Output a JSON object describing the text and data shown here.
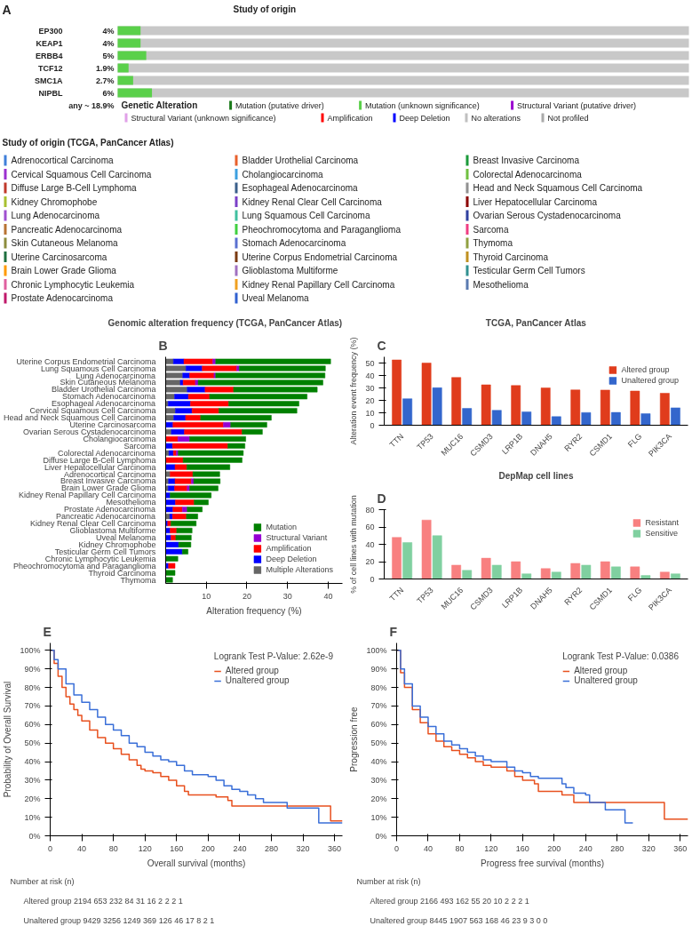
{
  "chart_data": [
    {
      "type": "other",
      "title": "Study of origin",
      "categories": [
        "EP300",
        "KEAP1",
        "ERBB4",
        "TCF12",
        "SMC1A",
        "NIPBL"
      ],
      "values": [
        4,
        4,
        5,
        1.9,
        2.7,
        6
      ],
      "value_labels": [
        "4%",
        "4%",
        "5%",
        "1.9%",
        "2.7%",
        "6%"
      ],
      "annotations": [
        "A",
        "any ~ 18.9%",
        "Mutation (putative driver)",
        "Mutation (unknown significance)",
        "Structural Variant (putative driver)",
        "Structural Variant (unknown significance)",
        "Amplification",
        "Deep Deletion",
        "No alterations",
        "Not profiled"
      ],
      "legend_title": "Genetic Alteration",
      "color": "#5ad04a"
    },
    {
      "type": "other",
      "title": "Study of origin (TCGA, PanCancer Atlas)",
      "categories": [
        "Adrenocortical Carcinoma",
        "Cervical Squamous Cell Carcinoma",
        "Diffuse Large B-Cell Lymphoma",
        "Kidney Chromophobe",
        "Lung Adenocarcinoma",
        "Pancreatic Adenocarcinoma",
        "Skin Cutaneous Melanoma",
        "Uterine Carcinosarcoma",
        "Brain Lower Grade Glioma",
        "Chronic Lymphocytic Leukemia",
        "Prostate Adenocarcinoma",
        "Bladder Urothelial Carcinoma",
        "Cholangiocarcinoma",
        "Esophageal Adenocarcinoma",
        "Kidney Renal Clear Cell Carcinoma",
        "Lung Squamous Cell Carcinoma",
        "Pheochromocytoma and Paraganglioma",
        "Stomach Adenocarcinoma",
        "Uterine Corpus Endometrial Carcinoma",
        "Glioblastoma Multiforme",
        "Kidney Renal Papillary Cell Carcinoma",
        "Uveal Melanoma",
        "Breast Invasive Carcinoma",
        "Colorectal Adenocarcinoma",
        "Head and Neck Squamous Cell Carcinoma",
        "Liver Hepatocellular Carcinoma",
        "Ovarian Serous Cystadenocarcinoma",
        "Sarcoma",
        "Thymoma",
        "Thyroid Carcinoma",
        "Testicular Germ Cell Tumors",
        "Mesothelioma"
      ],
      "colors": [
        "#3f7fd9",
        "#9b30d0",
        "#c0392b",
        "#a8c030",
        "#a050d0",
        "#b87333",
        "#8c8c3c",
        "#1f6f3f",
        "#ff9900",
        "#e060a0",
        "#c0186a",
        "#e8602c",
        "#3ca0e0",
        "#3a5f8a",
        "#7b3fc8",
        "#40c0a0",
        "#40d040",
        "#5a70d0",
        "#7a3a10",
        "#a070c0",
        "#f0a020",
        "#3060d0",
        "#1a9a3a",
        "#70c040",
        "#909090",
        "#8b0000",
        "#3040a0",
        "#f03c82",
        "#90a040",
        "#c09020",
        "#309090",
        "#5a7ab0"
      ]
    },
    {
      "type": "bar",
      "orientation": "horizontal",
      "stacked": true,
      "title": "Genomic alteration frequency (TCGA, PanCancer Atlas)",
      "annotations": [
        "B"
      ],
      "xlabel": "Alteration frequency (%)",
      "xlim": [
        0,
        43.5
      ],
      "xticks": [
        10,
        20,
        30,
        40
      ],
      "legend": "bottom right",
      "categories": [
        "Uterine Corpus Endometrial Carcinoma",
        "Lung Squamous Cell Carcinoma",
        "Lung Adenocarcinoma",
        "Skin Cutaneous Melanoma",
        "Bladder Urothelial Carcinoma",
        "Stomach Adenocarcinoma",
        "Esophageal Adenocarcinoma",
        "Cervical Squamous Cell Carcinoma",
        "Head and Neck Squamous Cell Carcinoma",
        "Uterine Carcinosarcoma",
        "Ovarian Serous Cystadenocarcinoma",
        "Cholangiocarcinoma",
        "Sarcoma",
        "Colorectal Adenocarcinoma",
        "Diffuse Large B-Cell Lymphoma",
        "Liver Hepatocellular Carcinoma",
        "Adrenocortical Carcinoma",
        "Breast Invasive Carcinoma",
        "Brain Lower Grade Glioma",
        "Kidney Renal Papillary Cell Carcinoma",
        "Mesothelioma",
        "Prostate Adenocarcinoma",
        "Pancreatic Adenocarcinoma",
        "Kidney Renal Clear Cell Carcinoma",
        "Glioblastoma Multiforme",
        "Uveal Melanoma",
        "Kidney Chromophobe",
        "Testicular Germ Cell Tumors",
        "Chronic Lymphocytic Leukemia",
        "Pheochromocytoma and Paraganglioma",
        "Thyroid Carcinoma",
        "Thymoma"
      ],
      "series": [
        {
          "name": "Multiple Alterations",
          "color": "#666666",
          "values": [
            1.9,
            5.0,
            4.2,
            3.6,
            5.3,
            2.2,
            0.6,
            2.4,
            2.0,
            null,
            1.4,
            null,
            null,
            0.8,
            null,
            null,
            1.1,
            0.7,
            0.6,
            null,
            null,
            null,
            1.0,
            null,
            null,
            null,
            null,
            null,
            null,
            null,
            null,
            null
          ]
        },
        {
          "name": "Deep Deletion",
          "color": "#0000ff",
          "values": [
            2.6,
            4.0,
            1.7,
            0.7,
            4.4,
            3.4,
            5.5,
            4.1,
            2.9,
            1.8,
            3.2,
            null,
            1.7,
            1.1,
            null,
            2.3,
            null,
            1.6,
            1.6,
            1.1,
            2.4,
            1.8,
            0.7,
            0.5,
            1.1,
            1.3,
            3.2,
            4.1,
            null,
            0.7,
            null,
            null
          ]
        },
        {
          "name": "Amplification",
          "color": "#ff0000",
          "values": [
            7.1,
            8.5,
            6.0,
            3.0,
            7.0,
            5.2,
            9.4,
            6.6,
            3.7,
            12.4,
            14.2,
            3.0,
            13.6,
            0.7,
            4.3,
            2.9,
            5.6,
            4.0,
            3.1,
            null,
            4.6,
            2.3,
            3.4,
            0.8,
            1.6,
            1.2,
            null,
            null,
            null,
            1.6,
            null,
            null
          ]
        },
        {
          "name": "Structural Variant",
          "color": "#9400d3",
          "values": [
            0.7,
            0.6,
            0.4,
            0.7,
            null,
            null,
            null,
            null,
            null,
            1.8,
            null,
            2.9,
            null,
            0.5,
            null,
            null,
            null,
            0.6,
            0.6,
            null,
            null,
            1.2,
            null,
            null,
            null,
            null,
            null,
            null,
            null,
            null,
            null,
            null
          ]
        },
        {
          "name": "Mutation",
          "color": "#008000",
          "values": [
            28.3,
            21.2,
            26.9,
            30.7,
            20.6,
            24.0,
            17.3,
            19.2,
            17.4,
            8.9,
            5.0,
            13.8,
            4.2,
            16.0,
            14.5,
            10.6,
            6.6,
            6.5,
            7.0,
            10.1,
            3.5,
            3.7,
            2.8,
            6.2,
            3.8,
            3.8,
            3.0,
            1.4,
            3.0,
            null,
            2.3,
            1.7
          ]
        }
      ]
    },
    {
      "type": "bar",
      "title": "TCGA, PanCancer Atlas",
      "annotations": [
        "C"
      ],
      "ylabel": "Alteration event frequency (%)",
      "ylim": [
        0,
        55
      ],
      "yticks": [
        0,
        10,
        20,
        30,
        40,
        50
      ],
      "legend": "top right",
      "categories": [
        "TTN",
        "TP53",
        "MUC16",
        "CSMD3",
        "LRP1B",
        "DNAH5",
        "RYR2",
        "CSMD1",
        "FLG",
        "PIK3CA"
      ],
      "series": [
        {
          "name": "Altered group",
          "color": "#e03c1c",
          "values": [
            52.5,
            50.0,
            38.4,
            32.5,
            31.9,
            30.0,
            28.4,
            28.3,
            27.5,
            25.7
          ]
        },
        {
          "name": "Unaltered group",
          "color": "#3366cc",
          "values": [
            21.3,
            30.1,
            13.5,
            12.0,
            10.8,
            6.9,
            10.2,
            10.3,
            9.3,
            14.0
          ]
        }
      ]
    },
    {
      "type": "bar",
      "title": "DepMap cell lines",
      "annotations": [
        "D"
      ],
      "ylabel": "% of cell lines with mutation",
      "ylim": [
        0,
        80
      ],
      "yticks": [
        0,
        20,
        40,
        60,
        80
      ],
      "legend": "top right",
      "categories": [
        "TTN",
        "TP53",
        "MUC16",
        "CSMD3",
        "LRP1B",
        "DNAH5",
        "RYR2",
        "CSMD1",
        "FLG",
        "PIK3CA"
      ],
      "series": [
        {
          "name": "Resistant",
          "color": "#f88080",
          "values": [
            48,
            68,
            16,
            24,
            20,
            12,
            18,
            20,
            14,
            8
          ]
        },
        {
          "name": "Sensitive",
          "color": "#80d0a0",
          "values": [
            42,
            50,
            10,
            16,
            6,
            8,
            16,
            14,
            4,
            6
          ]
        }
      ]
    },
    {
      "type": "step",
      "annotations": [
        "E",
        "Logrank Test P-Value: 2.62e-9",
        "Number at risk (n)",
        "Altered group   2194    653    232    84    31    16    2    2    2    1",
        "Unaltered group   9429   3256  1249   369   126    46    17    8    2    1"
      ],
      "xlabel": "Overall survival (months)",
      "ylabel": "Probability of Overall Survival",
      "xlim": [
        0,
        370
      ],
      "xticks": [
        0,
        40,
        80,
        120,
        160,
        200,
        240,
        280,
        320,
        360
      ],
      "ylim": [
        0,
        104
      ],
      "yticks": [
        {
          "value": 0,
          "label": "0%"
        },
        {
          "value": 10,
          "label": "10%"
        },
        {
          "value": 20,
          "label": "20%"
        },
        {
          "value": 30,
          "label": "30%"
        },
        {
          "value": 40,
          "label": "40%"
        },
        {
          "value": 50,
          "label": "50%"
        },
        {
          "value": 60,
          "label": "60%"
        },
        {
          "value": 70,
          "label": "70%"
        },
        {
          "value": 80,
          "label": "80%"
        },
        {
          "value": 90,
          "label": "90%"
        },
        {
          "value": 100,
          "label": "100%"
        }
      ],
      "legend": "top right",
      "series": [
        {
          "name": "Altered group",
          "color": "#e8501e",
          "x": [
            0,
            5,
            10,
            15,
            20,
            25,
            30,
            35,
            40,
            50,
            60,
            70,
            80,
            90,
            100,
            110,
            115,
            120,
            130,
            140,
            150,
            160,
            170,
            175,
            200,
            210,
            225,
            230,
            355,
            370
          ],
          "values": [
            100,
            93,
            86,
            80,
            75,
            71,
            68,
            65,
            62,
            57,
            53,
            50,
            47,
            44,
            41,
            38,
            36,
            35,
            34,
            32,
            30,
            27,
            24,
            22,
            22,
            21,
            19,
            16,
            8,
            8
          ]
        },
        {
          "name": "Unaltered group",
          "color": "#3a6fd8",
          "x": [
            0,
            5,
            10,
            20,
            30,
            40,
            50,
            60,
            70,
            80,
            90,
            100,
            110,
            120,
            130,
            140,
            150,
            160,
            170,
            180,
            200,
            210,
            220,
            230,
            240,
            250,
            260,
            270,
            300,
            340,
            370
          ],
          "values": [
            100,
            95,
            90,
            82,
            76,
            72,
            68,
            64,
            60,
            57,
            54,
            50,
            48,
            45,
            43,
            41,
            40,
            38,
            35,
            33,
            32,
            30,
            27,
            25,
            24,
            22,
            20,
            18,
            15,
            7,
            7
          ]
        }
      ]
    },
    {
      "type": "step",
      "annotations": [
        "F",
        "Logrank Test P-Value: 0.0386",
        "Number at risk (n)",
        "Altered group   2166    493    162    55    20    10    2    2    2    1",
        "Unaltered group   8445   1907   563   168   46    23    9    3    0    0"
      ],
      "xlabel": "Progress free survival (months)",
      "ylabel": "Progression free",
      "xlim": [
        0,
        370
      ],
      "xticks": [
        0,
        40,
        80,
        120,
        160,
        200,
        240,
        280,
        320,
        360
      ],
      "ylim": [
        0,
        104
      ],
      "yticks": [
        {
          "value": 0,
          "label": "0%"
        },
        {
          "value": 10,
          "label": "10%"
        },
        {
          "value": 20,
          "label": "20%"
        },
        {
          "value": 30,
          "label": "30%"
        },
        {
          "value": 40,
          "label": "40%"
        },
        {
          "value": 50,
          "label": "50%"
        },
        {
          "value": 60,
          "label": "60%"
        },
        {
          "value": 70,
          "label": "70%"
        },
        {
          "value": 80,
          "label": "80%"
        },
        {
          "value": 90,
          "label": "90%"
        },
        {
          "value": 100,
          "label": "100%"
        }
      ],
      "legend": "top right",
      "series": [
        {
          "name": "Altered group",
          "color": "#e8501e",
          "x": [
            0,
            5,
            10,
            20,
            30,
            40,
            50,
            60,
            70,
            80,
            90,
            100,
            110,
            120,
            140,
            150,
            160,
            175,
            180,
            210,
            225,
            340,
            370
          ],
          "values": [
            100,
            88,
            80,
            68,
            61,
            55,
            51,
            48,
            46,
            44,
            42,
            40,
            38,
            37,
            35,
            32,
            30,
            28,
            24,
            22,
            18,
            9,
            9
          ]
        },
        {
          "name": "Unaltered group",
          "color": "#3a6fd8",
          "x": [
            0,
            5,
            10,
            20,
            30,
            40,
            50,
            60,
            70,
            80,
            90,
            100,
            110,
            120,
            140,
            150,
            160,
            170,
            180,
            210,
            215,
            225,
            240,
            245,
            265,
            290,
            300
          ],
          "values": [
            100,
            90,
            82,
            70,
            64,
            59,
            55,
            51,
            49,
            47,
            45,
            43,
            41,
            40,
            37,
            35,
            34,
            32,
            31,
            28,
            26,
            23,
            22,
            18,
            14,
            7,
            7
          ]
        }
      ]
    }
  ]
}
